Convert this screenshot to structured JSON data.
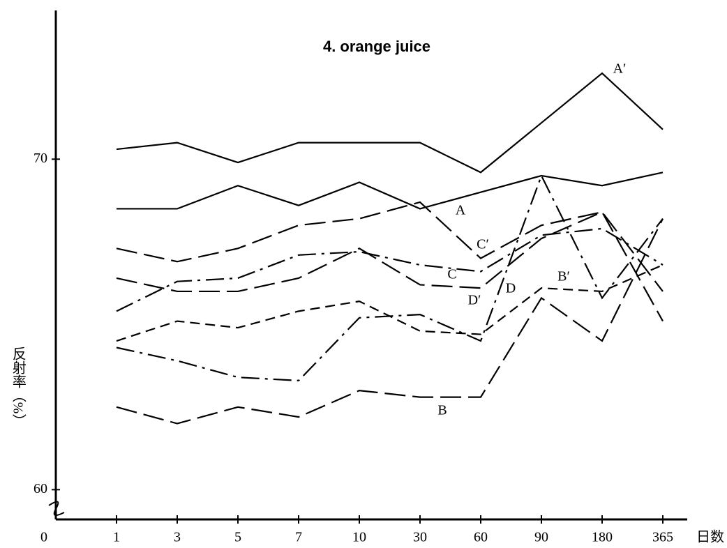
{
  "chart_data": {
    "type": "line",
    "title": "4.  orange juice",
    "y_label": "反射率（%）",
    "x_label": "日数",
    "origin_label": "0",
    "categories": [
      "1",
      "3",
      "5",
      "7",
      "10",
      "30",
      "60",
      "90",
      "180",
      "365"
    ],
    "ylim": [
      59.1,
      74.5
    ],
    "yticks": [
      60,
      70
    ],
    "series": [
      {
        "name": "A′",
        "color": "#000",
        "style": "solid",
        "values": [
          70.3,
          70.5,
          69.9,
          70.5,
          70.5,
          70.5,
          69.6,
          71.1,
          72.6,
          70.9
        ]
      },
      {
        "name": "A",
        "color": "#000",
        "style": "solid",
        "values": [
          68.5,
          68.5,
          69.2,
          68.6,
          69.3,
          68.5,
          69.0,
          69.5,
          69.2,
          69.6
        ]
      },
      {
        "name": "C′",
        "color": "#000",
        "style": "long-dash",
        "values": [
          67.3,
          66.9,
          67.3,
          68.0,
          68.2,
          68.7,
          67.0,
          68.0,
          68.4,
          66.0
        ]
      },
      {
        "name": "C",
        "color": "#000",
        "style": "dash-dot",
        "values": [
          65.4,
          66.3,
          66.4,
          67.1,
          67.2,
          66.8,
          66.6,
          67.7,
          67.9,
          66.8
        ]
      },
      {
        "name": "D′",
        "color": "#000",
        "style": "long-dash",
        "values": [
          66.4,
          66.0,
          66.0,
          66.4,
          67.3,
          66.2,
          66.1,
          67.6,
          68.4,
          65.1
        ]
      },
      {
        "name": "D",
        "color": "#000",
        "style": "dash-dot",
        "values": [
          64.3,
          63.9,
          63.4,
          63.3,
          65.2,
          65.3,
          64.5,
          69.5,
          65.8,
          68.2
        ]
      },
      {
        "name": "B′",
        "color": "#000",
        "style": "short-dash",
        "values": [
          64.5,
          65.1,
          64.9,
          65.4,
          65.7,
          64.8,
          64.7,
          66.1,
          66.0,
          66.8
        ]
      },
      {
        "name": "B",
        "color": "#000",
        "style": "long-dash",
        "values": [
          62.5,
          62.0,
          62.5,
          62.2,
          63.0,
          62.8,
          62.8,
          65.8,
          64.5,
          68.2
        ]
      }
    ]
  }
}
